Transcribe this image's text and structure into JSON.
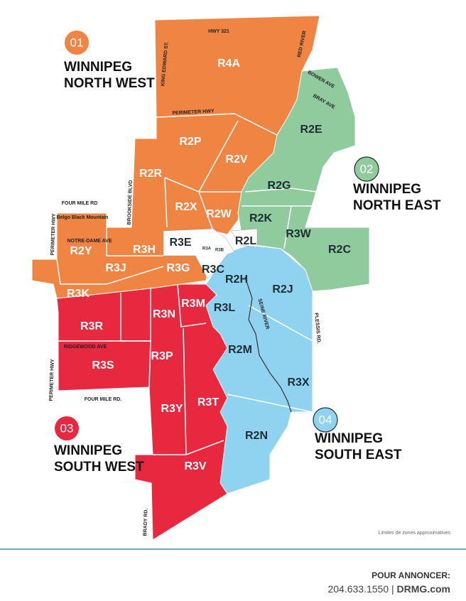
{
  "regions": [
    {
      "number": "01",
      "lines": [
        "WINNIPEG",
        "NORTH WEST"
      ],
      "color": "#ef8443"
    },
    {
      "number": "02",
      "lines": [
        "WINNIPEG",
        "NORTH EAST"
      ],
      "color": "#8fcb9c"
    },
    {
      "number": "03",
      "lines": [
        "WINNIPEG",
        "SOUTH WEST"
      ],
      "color": "#e8283e"
    },
    {
      "number": "04",
      "lines": [
        "WINNIPEG",
        "SOUTH EAST"
      ],
      "color": "#8fd3f0"
    }
  ],
  "zones": [
    "R4A",
    "R2P",
    "R2V",
    "R2R",
    "R2X",
    "R2W",
    "R2E",
    "R2G",
    "R2K",
    "R3W",
    "R2C",
    "R3E",
    "R2L",
    "R2Y",
    "R3H",
    "R3J",
    "R3G",
    "R3K",
    "R3C",
    "R3A",
    "R3B",
    "R2H",
    "R2J",
    "R3L",
    "R3N",
    "R3M",
    "R3R",
    "R3S",
    "R3P",
    "R2M",
    "R3X",
    "R3Y",
    "R3T",
    "R2N",
    "R3V"
  ],
  "roads": [
    "HWY 321",
    "RED RIVER",
    "KING EDWARD ST.",
    "BOWEN AVE",
    "BRAY AVE",
    "PERIMETER HWY",
    "BROOKSIDE BLVD",
    "FOUR MILE RD",
    "Belgo Black Mountain",
    "PERIMETER HWY",
    "NOTRE-DAME AVE",
    "SEINE RIVER",
    "PLESSIS RD.",
    "RIDGEWOOD AVE",
    "PERIMETER HWY",
    "FOUR MILE RD.",
    "BRADY RD."
  ],
  "note": "Limites de zones approximatives",
  "footer": {
    "heading": "POUR ANNONCER:",
    "phone": "204.633.1550",
    "separator": "|",
    "website": "DRMG.com"
  }
}
